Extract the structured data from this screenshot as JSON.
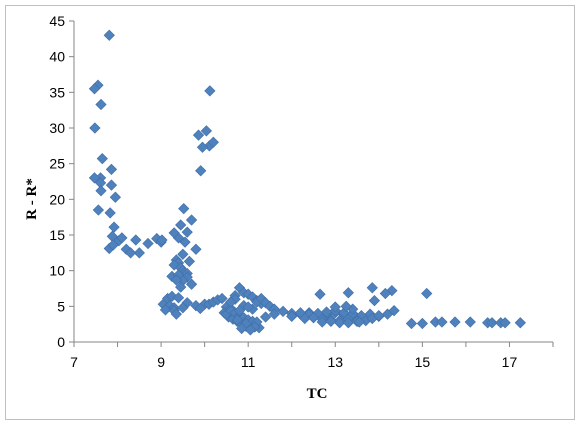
{
  "chart_data": {
    "type": "scatter",
    "title": "",
    "xlabel": "TC",
    "ylabel": "R - R*",
    "xlim": [
      7,
      18
    ],
    "ylim": [
      0,
      45
    ],
    "xticks": [
      7,
      9,
      11,
      13,
      15,
      17
    ],
    "yticks": [
      0,
      5,
      10,
      15,
      20,
      25,
      30,
      35,
      40,
      45
    ],
    "grid": false,
    "legend": "none",
    "marker": "diamond",
    "colors": {
      "marker": "#4f81bd",
      "axis": "#868686"
    },
    "series": [
      {
        "x": [
          7.81,
          7.55,
          7.47,
          7.62,
          7.48,
          7.65,
          7.61,
          7.86,
          7.47,
          7.61,
          7.86,
          7.62,
          7.95,
          7.56,
          7.83,
          7.92,
          7.88,
          7.81,
          8.03,
          7.9,
          8.1,
          8.2,
          8.5,
          8.3,
          8.7,
          8.9,
          9.0,
          9.02,
          8.42,
          9.86,
          10.04,
          10.12,
          9.91,
          10.11,
          9.95,
          10.2,
          9.52,
          9.45,
          9.6,
          9.4,
          9.55,
          9.7,
          9.3,
          9.8,
          9.5,
          9.35,
          9.4,
          9.65,
          9.3,
          9.45,
          9.5,
          9.55,
          9.6,
          9.25,
          9.4,
          9.6,
          9.5,
          9.7,
          9.35,
          9.45,
          9.05,
          9.15,
          9.2,
          9.3,
          9.1,
          9.25,
          9.4,
          9.6,
          9.8,
          10.0,
          9.3,
          9.5,
          9.9,
          9.35,
          10.1,
          10.2,
          10.3,
          10.4,
          10.5,
          10.6,
          10.7,
          10.8,
          10.9,
          11.0,
          11.1,
          11.2,
          11.3,
          10.45,
          10.55,
          10.65,
          10.75,
          10.85,
          10.95,
          11.05,
          11.15,
          11.25,
          10.5,
          10.6,
          10.7,
          10.8,
          10.9,
          11.0,
          11.1,
          11.2,
          10.7,
          10.9,
          11.1,
          10.8,
          11.0,
          11.2,
          10.75,
          10.95,
          11.15,
          10.85,
          11.05,
          10.6,
          11.3,
          11.4,
          11.5,
          11.6,
          11.8,
          12.0,
          12.2,
          12.4,
          11.4,
          11.6,
          12.0,
          12.2,
          12.4,
          12.6,
          12.8,
          13.0,
          13.2,
          13.4,
          13.6,
          13.8,
          14.0,
          14.2,
          12.3,
          12.5,
          12.7,
          12.9,
          13.1,
          13.3,
          13.5,
          13.7,
          12.7,
          12.9,
          13.1,
          13.3,
          13.5,
          12.8,
          13.0,
          13.2,
          13.4,
          13.0,
          13.25,
          12.65,
          13.3,
          13.85,
          14.3,
          14.15,
          13.9,
          13.85,
          14.35,
          13.55,
          14.0,
          14.75,
          15.0,
          15.3,
          15.45,
          15.75,
          16.1,
          16.5,
          16.6,
          16.8,
          16.9,
          17.25,
          15.1
        ],
        "y": [
          43,
          36,
          35.5,
          33.3,
          30,
          25.7,
          23,
          24.2,
          23,
          22.3,
          22,
          21.2,
          20.3,
          18.5,
          18.1,
          16.1,
          14.8,
          13.1,
          14.2,
          13.6,
          14.6,
          13,
          12.5,
          12.5,
          13.8,
          14.5,
          14,
          14.3,
          14.3,
          29,
          29.6,
          35.2,
          24,
          27.5,
          27.3,
          28,
          18.7,
          16.4,
          15.4,
          14.6,
          14,
          17.1,
          15.3,
          13,
          12.3,
          11.5,
          11.1,
          11.3,
          10.8,
          10.4,
          10,
          9.7,
          9.6,
          9.2,
          9.4,
          9.1,
          8.6,
          8.1,
          8.7,
          7.7,
          5.3,
          6.1,
          5.1,
          4.8,
          4.5,
          6.4,
          6.2,
          5.5,
          5.1,
          5.3,
          4.4,
          4.8,
          4.7,
          3.9,
          5.3,
          5.6,
          5.9,
          6.1,
          4.9,
          4.7,
          6.5,
          7.6,
          6.9,
          6.7,
          6.3,
          5.8,
          5.4,
          4.1,
          3.5,
          3.2,
          2.9,
          2.6,
          2.2,
          2.3,
          2.5,
          2.0,
          3.9,
          4.4,
          4.1,
          3.7,
          3.4,
          3.1,
          2.9,
          2.8,
          6,
          5.1,
          4.6,
          4.4,
          4.9,
          5.6,
          3.1,
          2.6,
          2.1,
          1.9,
          1.7,
          5.6,
          6.1,
          5.5,
          5,
          4.6,
          4.3,
          4,
          3.9,
          4.1,
          3.5,
          3.9,
          3.6,
          4.1,
          3.9,
          4.0,
          3.8,
          4.1,
          3.8,
          4.0,
          3.7,
          3.9,
          3.6,
          3.9,
          3.3,
          3.4,
          3.2,
          3.1,
          3.0,
          3.2,
          3.1,
          3.0,
          2.8,
          2.9,
          2.7,
          2.7,
          2.9,
          4.2,
          4.4,
          4.1,
          4.6,
          4.9,
          5.0,
          6.7,
          6.9,
          7.6,
          7.2,
          6.8,
          5.8,
          3.3,
          4.4,
          2.8,
          3.7,
          2.6,
          2.6,
          2.8,
          2.8,
          2.8,
          2.8,
          2.7,
          2.7,
          2.7,
          2.7,
          2.7,
          6.8
        ]
      }
    ]
  }
}
